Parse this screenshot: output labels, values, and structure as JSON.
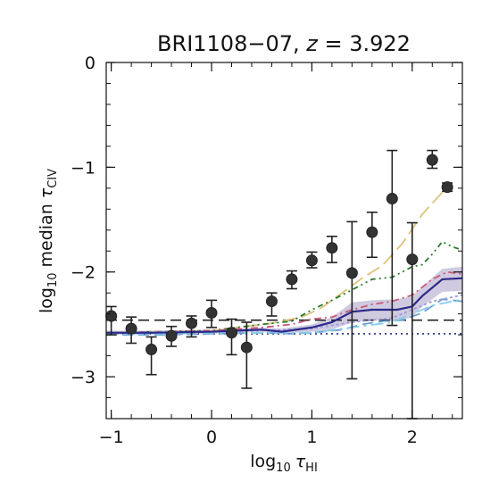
{
  "chart_data": {
    "type": "line",
    "title": {
      "main": "BRI1108−07, ",
      "var": "z",
      "rest": " = 3.922"
    },
    "xlabel": {
      "prefix": "log",
      "sub": "10",
      "symbol": "τ",
      "symsub": "HI"
    },
    "ylabel": {
      "prefix": "log",
      "sub": "10",
      "mid": " median ",
      "symbol": "τ",
      "symsub": "CIV"
    },
    "xlim": [
      -1.05,
      2.5
    ],
    "ylim": [
      -3.4,
      0.0
    ],
    "xticks": [
      -1,
      0,
      1,
      2
    ],
    "xtick_labels": [
      "−1",
      "0",
      "1",
      "2"
    ],
    "yticks": [
      -3,
      -2,
      -1,
      0
    ],
    "ytick_labels": [
      "−3",
      "−2",
      "−1",
      "0"
    ],
    "grid": false,
    "points": [
      {
        "x": -1.0,
        "y": -2.42,
        "ylo": -2.6,
        "yhi": -2.33
      },
      {
        "x": -0.8,
        "y": -2.54,
        "ylo": -2.68,
        "yhi": -2.43
      },
      {
        "x": -0.6,
        "y": -2.74,
        "ylo": -2.98,
        "yhi": -2.62
      },
      {
        "x": -0.4,
        "y": -2.61,
        "ylo": -2.71,
        "yhi": -2.52
      },
      {
        "x": -0.2,
        "y": -2.49,
        "ylo": -2.62,
        "yhi": -2.42
      },
      {
        "x": 0.0,
        "y": -2.39,
        "ylo": -2.53,
        "yhi": -2.27
      },
      {
        "x": 0.2,
        "y": -2.58,
        "ylo": -2.79,
        "yhi": -2.45
      },
      {
        "x": 0.35,
        "y": -2.72,
        "ylo": -3.11,
        "yhi": -2.48
      },
      {
        "x": 0.6,
        "y": -2.28,
        "ylo": -2.42,
        "yhi": -2.2
      },
      {
        "x": 0.8,
        "y": -2.07,
        "ylo": -2.16,
        "yhi": -1.99
      },
      {
        "x": 1.0,
        "y": -1.89,
        "ylo": -1.96,
        "yhi": -1.81
      },
      {
        "x": 1.2,
        "y": -1.77,
        "ylo": -1.91,
        "yhi": -1.66
      },
      {
        "x": 1.4,
        "y": -2.01,
        "ylo": -3.02,
        "yhi": -1.52
      },
      {
        "x": 1.6,
        "y": -1.62,
        "ylo": -1.86,
        "yhi": -1.43
      },
      {
        "x": 1.8,
        "y": -1.3,
        "ylo": -2.51,
        "yhi": -0.84
      },
      {
        "x": 2.0,
        "y": -1.88,
        "ylo": -3.4,
        "yhi": -1.53
      },
      {
        "x": 2.2,
        "y": -0.93,
        "ylo": -1.01,
        "yhi": -0.84
      },
      {
        "x": 2.35,
        "y": -1.19,
        "ylo": -1.23,
        "yhi": -1.15
      }
    ],
    "hlines": [
      {
        "y": -2.46,
        "style": "dashed",
        "color": "#222222"
      },
      {
        "y": -2.59,
        "style": "dotted",
        "color": "#1f2a8c"
      }
    ],
    "band": {
      "color": "#b0a6cc",
      "x": [
        -1.05,
        -0.6,
        0.0,
        0.5,
        0.7,
        1.0,
        1.2,
        1.4,
        1.6,
        1.85,
        2.0,
        2.1,
        2.3,
        2.5
      ],
      "lo": [
        -2.6,
        -2.6,
        -2.59,
        -2.57,
        -2.59,
        -2.57,
        -2.55,
        -2.48,
        -2.46,
        -2.47,
        -2.43,
        -2.33,
        -2.19,
        -2.18
      ],
      "hi": [
        -2.56,
        -2.56,
        -2.55,
        -2.53,
        -2.54,
        -2.5,
        -2.43,
        -2.29,
        -2.27,
        -2.26,
        -2.23,
        -2.14,
        -1.97,
        -1.95
      ]
    },
    "series": [
      {
        "color": "#dcc27a",
        "dash": "16,6",
        "x": [
          -1.05,
          -0.5,
          0.0,
          0.6,
          0.9,
          1.1,
          1.3,
          1.5,
          1.7,
          1.9,
          2.1,
          2.3,
          2.4
        ],
        "y": [
          -2.58,
          -2.57,
          -2.56,
          -2.49,
          -2.43,
          -2.34,
          -2.2,
          -2.06,
          -1.94,
          -1.73,
          -1.45,
          -1.24,
          -1.2
        ]
      },
      {
        "color": "#2a7a2a",
        "dash": "6,4,2,4,2,4",
        "x": [
          -1.05,
          -0.5,
          0.0,
          0.5,
          0.8,
          1.0,
          1.2,
          1.4,
          1.6,
          1.8,
          2.0,
          2.1,
          2.2,
          2.3,
          2.4,
          2.5
        ],
        "y": [
          -2.58,
          -2.57,
          -2.56,
          -2.5,
          -2.47,
          -2.36,
          -2.27,
          -2.17,
          -2.07,
          -2.05,
          -1.95,
          -1.93,
          -1.83,
          -1.71,
          -1.76,
          -1.79
        ]
      },
      {
        "color": "#c85a7a",
        "dash": "8,4,2,4",
        "x": [
          -1.05,
          -0.5,
          0.0,
          0.5,
          0.8,
          1.0,
          1.2,
          1.4,
          1.6,
          1.8,
          2.0,
          2.2,
          2.35,
          2.5
        ],
        "y": [
          -2.58,
          -2.57,
          -2.56,
          -2.53,
          -2.5,
          -2.45,
          -2.43,
          -2.36,
          -2.31,
          -2.28,
          -2.22,
          -2.07,
          -2.0,
          -2.02
        ]
      },
      {
        "color": "#6a9ed0",
        "dash": "12,6",
        "x": [
          -1.05,
          -0.5,
          0.0,
          0.5,
          0.8,
          1.0,
          1.3,
          1.5,
          1.7,
          1.9,
          2.1,
          2.3,
          2.5
        ],
        "y": [
          -2.6,
          -2.6,
          -2.59,
          -2.58,
          -2.59,
          -2.58,
          -2.55,
          -2.5,
          -2.47,
          -2.46,
          -2.39,
          -2.26,
          -2.28
        ]
      },
      {
        "color": "#9a9ad8",
        "dash": "3,3",
        "x": [
          -1.05,
          -0.5,
          0.0,
          0.5,
          1.0,
          1.4,
          1.8,
          2.2,
          2.5
        ],
        "y": [
          -2.58,
          -2.57,
          -2.57,
          -2.56,
          -2.54,
          -2.48,
          -2.44,
          -2.28,
          -2.22
        ]
      },
      {
        "color": "#87ceeb",
        "dash": "14,5,3,5",
        "x": [
          -1.05,
          -0.5,
          0.0,
          0.5,
          1.0,
          1.4,
          1.8,
          2.2,
          2.5
        ],
        "y": [
          -2.59,
          -2.59,
          -2.58,
          -2.58,
          -2.58,
          -2.53,
          -2.48,
          -2.32,
          -2.26
        ]
      },
      {
        "color": "#2c2a8a",
        "dash": "",
        "width": 2.2,
        "x": [
          -1.05,
          -0.6,
          0.0,
          0.5,
          0.7,
          1.0,
          1.2,
          1.4,
          1.6,
          1.85,
          2.0,
          2.1,
          2.3,
          2.5
        ],
        "y": [
          -2.58,
          -2.58,
          -2.57,
          -2.55,
          -2.57,
          -2.53,
          -2.48,
          -2.38,
          -2.36,
          -2.36,
          -2.33,
          -2.23,
          -2.07,
          -2.06
        ]
      }
    ]
  }
}
